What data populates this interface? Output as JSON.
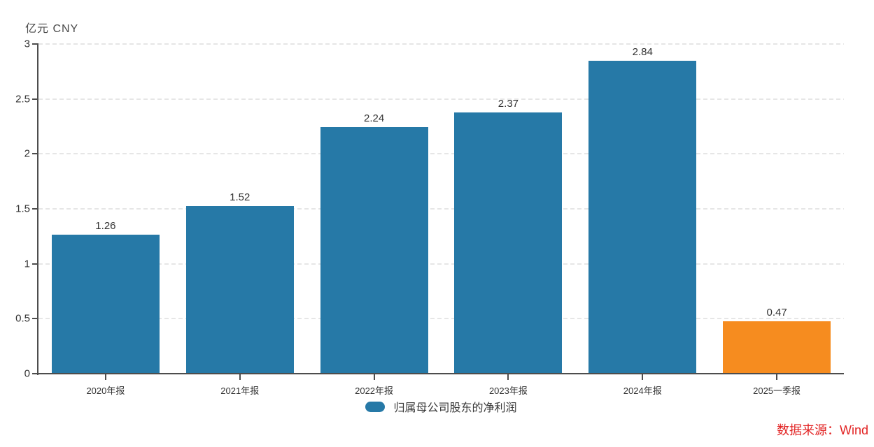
{
  "unit_label": "亿元 CNY",
  "source_note": "数据来源：Wind",
  "legend": {
    "label": "归属母公司股东的净利润",
    "marker_color": "#2679a7"
  },
  "colors": {
    "bar_primary": "#2679a7",
    "bar_highlight": "#f68c1f",
    "axis": "#4d4d4d",
    "grid": "#e6e6e6",
    "text": "#333333",
    "source_red": "#e22424"
  },
  "chart_data": {
    "type": "bar",
    "title": "",
    "categories": [
      "2020年报",
      "2021年报",
      "2022年报",
      "2023年报",
      "2024年报",
      "2025一季报"
    ],
    "values": [
      1.26,
      1.52,
      2.24,
      2.37,
      2.84,
      0.47
    ],
    "value_labels": [
      "1.26",
      "1.52",
      "2.24",
      "2.37",
      "2.84",
      "0.47"
    ],
    "bar_colors": [
      "#2679a7",
      "#2679a7",
      "#2679a7",
      "#2679a7",
      "#2679a7",
      "#f68c1f"
    ],
    "series_name": "归属母公司股东的净利润",
    "xlabel": "",
    "ylabel": "亿元 CNY",
    "ylim": [
      0,
      3
    ],
    "ytick_values": [
      0,
      0.5,
      1,
      1.5,
      2,
      2.5,
      3
    ],
    "ytick_labels": [
      "0",
      "0.5",
      "1",
      "1.5",
      "2",
      "2.5",
      "3"
    ],
    "grid": "horizontal-dashed",
    "legend_position": "bottom"
  }
}
